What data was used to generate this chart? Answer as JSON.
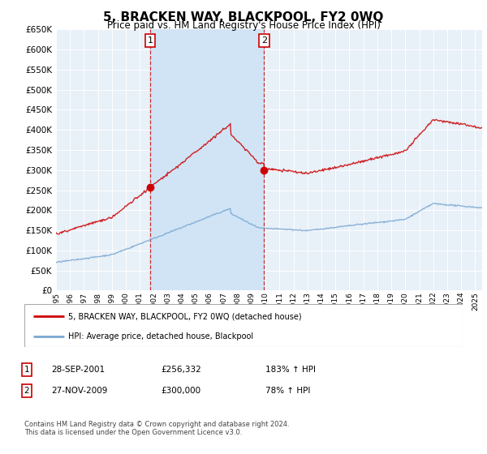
{
  "title": "5, BRACKEN WAY, BLACKPOOL, FY2 0WQ",
  "subtitle": "Price paid vs. HM Land Registry's House Price Index (HPI)",
  "ylim": [
    0,
    650000
  ],
  "xlim_start": 1995.0,
  "xlim_end": 2025.5,
  "sale1_date": 2001.74,
  "sale1_price": 256332,
  "sale2_date": 2009.9,
  "sale2_price": 300000,
  "legend_line1": "5, BRACKEN WAY, BLACKPOOL, FY2 0WQ (detached house)",
  "legend_line2": "HPI: Average price, detached house, Blackpool",
  "table_row1": [
    "1",
    "28-SEP-2001",
    "£256,332",
    "183% ↑ HPI"
  ],
  "table_row2": [
    "2",
    "27-NOV-2009",
    "£300,000",
    "78% ↑ HPI"
  ],
  "footer1": "Contains HM Land Registry data © Crown copyright and database right 2024.",
  "footer2": "This data is licensed under the Open Government Licence v3.0.",
  "red_color": "#cc0000",
  "blue_color": "#7aa8d2",
  "shade_color": "#d0e4f5",
  "bg_color": "#e8f0f8",
  "plot_bg": "#ffffff",
  "grid_color": "#ffffff"
}
